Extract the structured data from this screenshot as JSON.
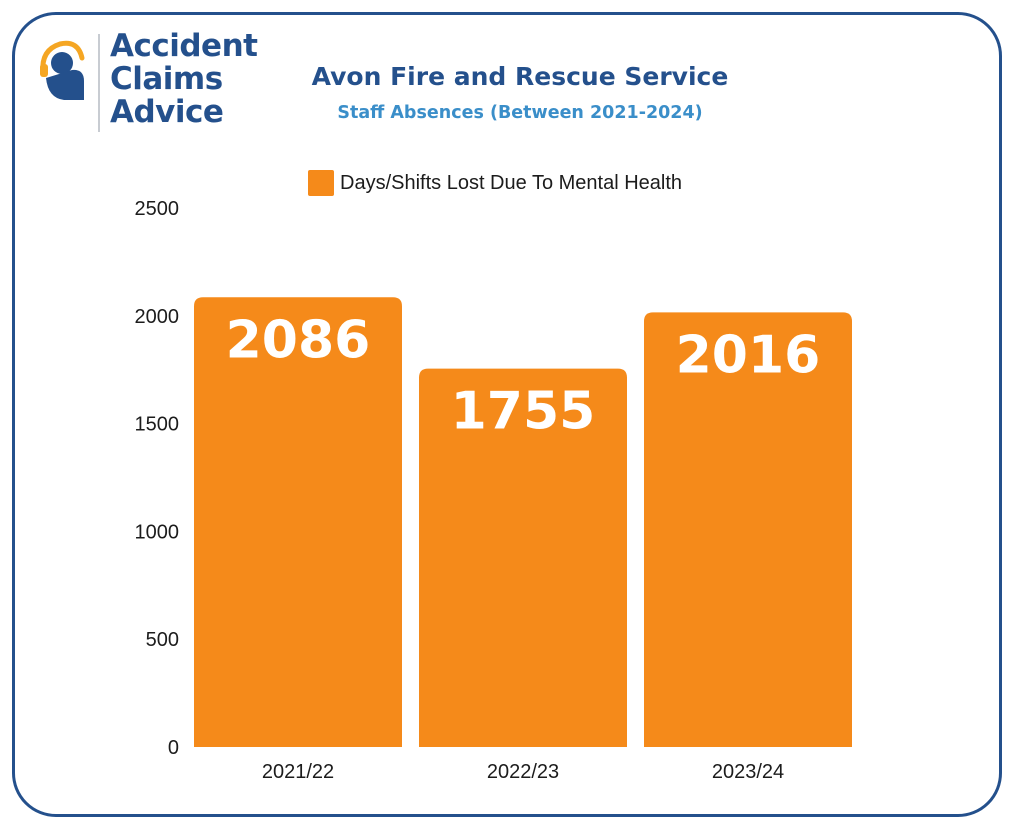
{
  "brand": {
    "line1": "Accident",
    "line2": "Claims",
    "line3": "Advice",
    "primary_color": "#24508c",
    "accent_color": "#f5a623"
  },
  "colors": {
    "bar": "#f58a1a",
    "frame": "#24508c",
    "subtitle": "#3a8ec9"
  },
  "chart_data": {
    "type": "bar",
    "title": "Avon Fire and Rescue Service",
    "subtitle": "Staff Absences (Between 2021-2024)",
    "categories": [
      "2021/22",
      "2022/23",
      "2023/24"
    ],
    "series": [
      {
        "name": "Days/Shifts Lost Due To Mental Health",
        "values": [
          2086,
          1755,
          2016
        ]
      }
    ],
    "data_labels": [
      "2086",
      "1755",
      "2016"
    ],
    "yticks": [
      "0",
      "500",
      "1000",
      "1500",
      "2000",
      "2500"
    ],
    "ylim": [
      0,
      2500
    ],
    "legend_position": "top-center",
    "grid": false
  }
}
